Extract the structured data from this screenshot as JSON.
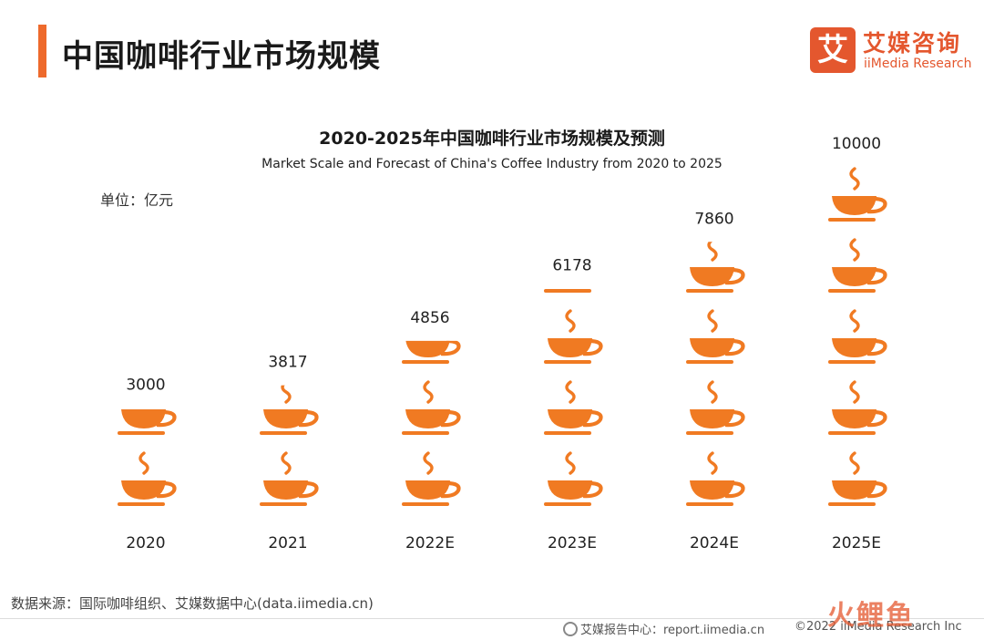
{
  "header": {
    "title": "中国咖啡行业市场规模",
    "logo_mark": "艾",
    "logo_cn": "艾媒咨询",
    "logo_en": "iiMedia Research"
  },
  "unit_label": "单位：亿元",
  "source": "数据来源：国际咖啡组织、艾媒数据中心(data.iimedia.cn)",
  "footer": {
    "report": "艾媒报告中心：report.iimedia.cn",
    "copyright": "©2022  iiMedia Research Inc"
  },
  "watermark": "火鲤鱼",
  "colors": {
    "accent": "#ee6a2c",
    "cup": "#f07a22",
    "brand": "#e4572e"
  },
  "chart_data": {
    "type": "bar",
    "style": "pictogram",
    "icon": "coffee-cup-icon",
    "units_per_icon": 2000,
    "title": "2020-2025年中国咖啡行业市场规模及预测",
    "subtitle": "Market Scale and Forecast of China's Coffee Industry from 2020 to 2025",
    "ylabel": "单位：亿元",
    "categories": [
      "2020",
      "2021",
      "2022E",
      "2023E",
      "2024E",
      "2025E"
    ],
    "values": [
      3000,
      3817,
      4856,
      6178,
      7860,
      10000
    ],
    "value_labels": [
      "3000",
      "3817",
      "4856",
      "6178",
      "7860",
      "10000"
    ]
  }
}
